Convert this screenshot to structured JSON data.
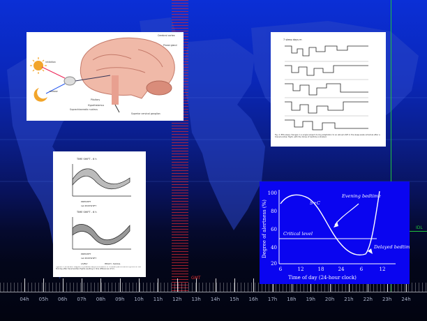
{
  "timeline": {
    "gmt_label": "GMT",
    "idl_label": "IDL",
    "hours": [
      "04h",
      "05h",
      "06h",
      "07h",
      "08h",
      "09h",
      "10h",
      "11h",
      "12h",
      "13h",
      "14h",
      "15h",
      "16h",
      "17h",
      "18h",
      "19h",
      "20h",
      "21h",
      "22h",
      "23h",
      "24h"
    ]
  },
  "brain_figure": {
    "labels": [
      "Cerebral cortex",
      "Pineal gland",
      "Pituitary",
      "Hypothalamus",
      "Suprachiasmatic nucleus",
      "Superior cervical ganglion",
      "inhibition",
      "release"
    ]
  },
  "sleep_figure": {
    "header": "7 sleep days m",
    "caption": "Fig. 2. EEG sleep changes in a single subject during adaptation to an abrupt shift in the sleep-wake schedule after a transmeridian flight, with the times of bedtime indicated."
  },
  "performance_figure": {
    "top_title": "TIME SHIFT - 6 h",
    "bottom_title": "TIME SHIFT - 6 h",
    "top_legend": [
      "PRESHIFT",
      "1st POSTSHIFT"
    ],
    "bottom_legend": [
      "PRESHIFT",
      "1st POSTSHIFT"
    ],
    "key": [
      "LIVELY",
      "HEAVY, SLUGG."
    ],
    "caption": "Figure 2.3 Schematic diagram of possible desynchronization in circadian performance rhythms on the first day after transmeridian flights resulting in time differences of 6 h."
  },
  "alertness_chart": {
    "ylabel": "Degree of alertness (%)",
    "xlabel": "Time of day (24-hour clock)",
    "y_ticks": [
      "100",
      "80",
      "60",
      "40",
      "20"
    ],
    "x_ticks": [
      "6",
      "12",
      "18",
      "24",
      "6",
      "12"
    ],
    "sc_label": "S+C",
    "evening_label": "Evening bedtime",
    "critical_label": "Critical level",
    "delayed_label": "Delayed bedtime"
  },
  "colors": {
    "gmt": "#e03030",
    "idl": "#21c43d",
    "alert_bg": "#0a05f0"
  }
}
